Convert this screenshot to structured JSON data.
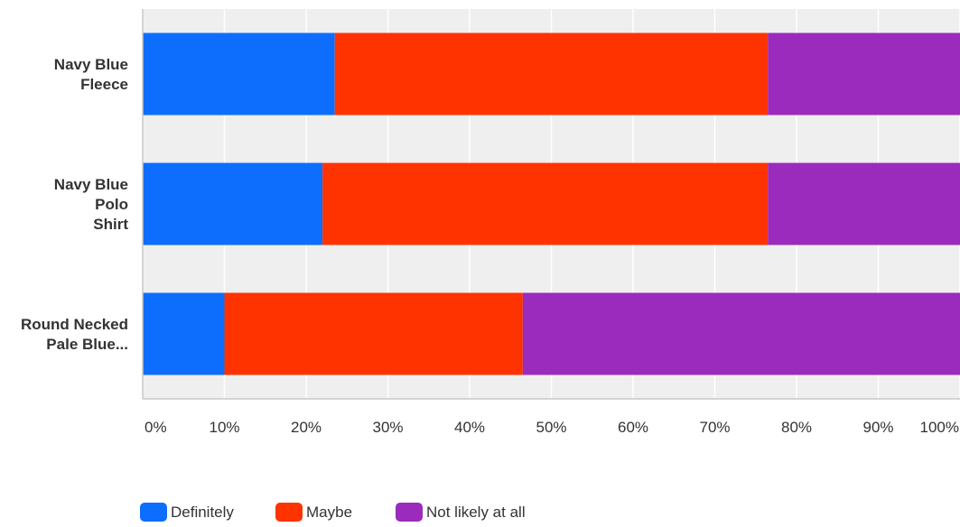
{
  "chart_data": {
    "type": "bar",
    "orientation": "horizontal",
    "stacked": true,
    "categories": [
      [
        "Navy Blue",
        "Fleece"
      ],
      [
        "Navy Blue",
        "Polo",
        "Shirt"
      ],
      [
        "Round Necked",
        "Pale Blue..."
      ]
    ],
    "series": [
      {
        "name": "Definitely",
        "color": "#0d6efd",
        "values": [
          23.5,
          22.0,
          10.0
        ]
      },
      {
        "name": "Maybe",
        "color": "#ff3300",
        "values": [
          53.0,
          54.5,
          36.5
        ]
      },
      {
        "name": "Not likely at all",
        "color": "#9a2bbc",
        "values": [
          23.5,
          23.5,
          53.5
        ]
      }
    ],
    "xlim": [
      0,
      100
    ],
    "x_ticks": [
      "0%",
      "10%",
      "20%",
      "30%",
      "40%",
      "50%",
      "60%",
      "70%",
      "80%",
      "90%",
      "100%"
    ],
    "grid": true,
    "legend": "bottom-left",
    "title": "",
    "xlabel": "",
    "ylabel": ""
  }
}
